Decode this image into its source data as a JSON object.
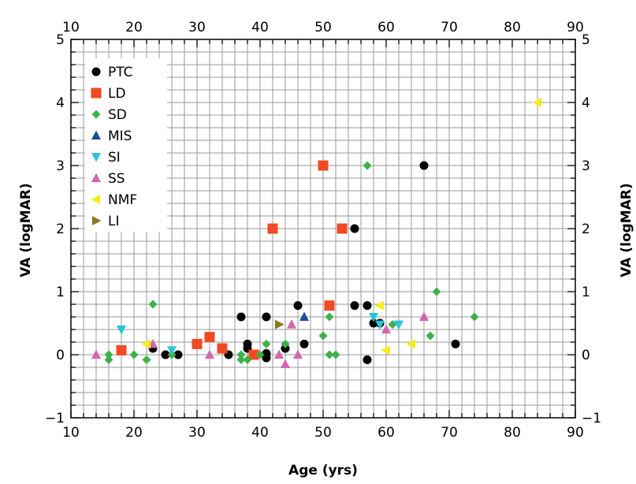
{
  "chart_data": {
    "type": "scatter",
    "xlabel": "Age (yrs)",
    "ylabel": "VA (logMAR)",
    "ylabel_right": "VA (logMAR)",
    "xlim": [
      10,
      90
    ],
    "ylim": [
      -1,
      5
    ],
    "xticks": [
      "10",
      "20",
      "30",
      "40",
      "50",
      "60",
      "70",
      "80",
      "90"
    ],
    "yticks": [
      "−1",
      "0",
      "1",
      "2",
      "3",
      "4",
      "5"
    ],
    "grid": true,
    "legend": "top-left",
    "series": [
      {
        "name": "PTC",
        "marker": "circle",
        "color": "#000000",
        "points": [
          [
            23,
            0.1
          ],
          [
            25,
            0
          ],
          [
            27,
            0
          ],
          [
            35,
            0
          ],
          [
            37,
            0.6
          ],
          [
            38,
            0.1
          ],
          [
            38,
            0.17
          ],
          [
            41,
            0.6
          ],
          [
            41,
            -0.05
          ],
          [
            41,
            0.02
          ],
          [
            44,
            0.1
          ],
          [
            46,
            0.78
          ],
          [
            47,
            0.17
          ],
          [
            55,
            0.78
          ],
          [
            55,
            2.0
          ],
          [
            57,
            0.78
          ],
          [
            57,
            -0.08
          ],
          [
            58,
            0.5
          ],
          [
            59,
            0.5
          ],
          [
            66,
            3.0
          ],
          [
            71,
            0.17
          ]
        ]
      },
      {
        "name": "LD",
        "marker": "square",
        "color": "#f04a23",
        "points": [
          [
            18,
            0.07
          ],
          [
            30,
            0.17
          ],
          [
            32,
            0.28
          ],
          [
            34,
            0.1
          ],
          [
            39,
            0
          ],
          [
            42,
            2.0
          ],
          [
            50,
            3.0
          ],
          [
            51,
            0.78
          ],
          [
            53,
            2.0
          ]
        ]
      },
      {
        "name": "SD",
        "marker": "diamond",
        "color": "#3db14a",
        "points": [
          [
            16,
            0
          ],
          [
            16,
            -0.08
          ],
          [
            20,
            0
          ],
          [
            22,
            -0.08
          ],
          [
            23,
            0.8
          ],
          [
            26,
            0
          ],
          [
            37,
            0
          ],
          [
            37,
            -0.08
          ],
          [
            38,
            -0.08
          ],
          [
            40,
            0
          ],
          [
            41,
            0.17
          ],
          [
            44,
            0.17
          ],
          [
            50,
            0.3
          ],
          [
            51,
            0.6
          ],
          [
            51,
            0
          ],
          [
            52,
            0
          ],
          [
            57,
            3.0
          ],
          [
            61,
            0.48
          ],
          [
            67,
            0.3
          ],
          [
            68,
            1.0
          ],
          [
            74,
            0.6
          ]
        ]
      },
      {
        "name": "MIS",
        "marker": "triangle-up",
        "color": "#1f4e9c",
        "points": [
          [
            47,
            0.6
          ]
        ]
      },
      {
        "name": "SI",
        "marker": "triangle-down",
        "color": "#27c6d4",
        "points": [
          [
            18,
            0.4
          ],
          [
            26,
            0.07
          ],
          [
            58,
            0.6
          ],
          [
            59,
            0.48
          ],
          [
            62,
            0.48
          ]
        ]
      },
      {
        "name": "SS",
        "marker": "triangle-up",
        "color": "#d466b0",
        "points": [
          [
            14,
            0
          ],
          [
            23,
            0.17
          ],
          [
            32,
            0
          ],
          [
            43,
            0
          ],
          [
            44,
            -0.15
          ],
          [
            45,
            0.48
          ],
          [
            46,
            0
          ],
          [
            60,
            0.4
          ],
          [
            66,
            0.6
          ]
        ]
      },
      {
        "name": "NMF",
        "marker": "triangle-left",
        "color": "#f5ec1c",
        "points": [
          [
            22,
            0.17
          ],
          [
            59,
            0.78
          ],
          [
            60,
            0.07
          ],
          [
            64,
            0.17
          ],
          [
            84,
            4.0
          ]
        ]
      },
      {
        "name": "LI",
        "marker": "triangle-right",
        "color": "#8a7a1c",
        "points": [
          [
            43,
            0.48
          ]
        ]
      }
    ]
  }
}
